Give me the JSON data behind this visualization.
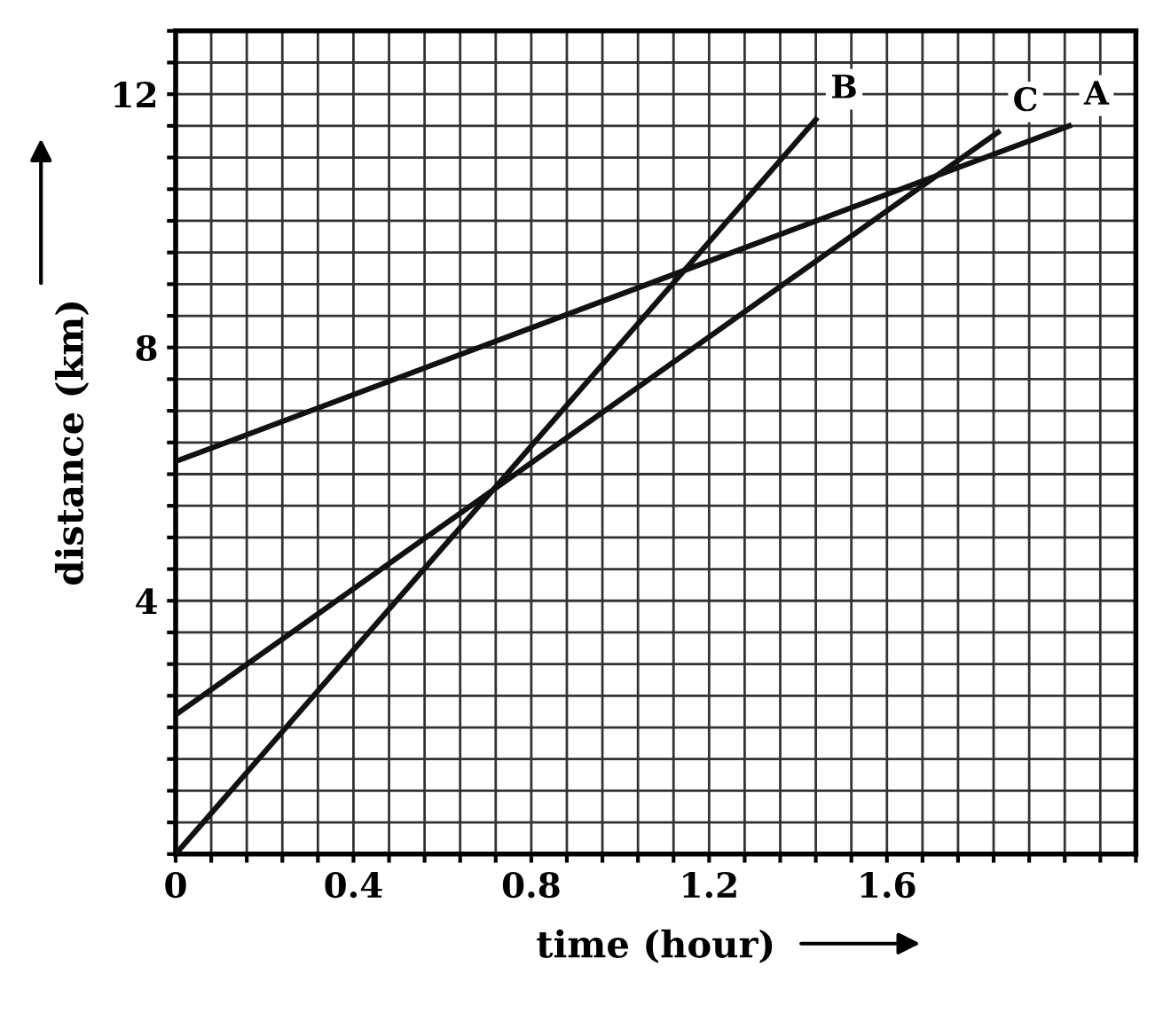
{
  "chart_data": {
    "type": "line",
    "xlabel": "time (hour)",
    "ylabel": "distance (km)",
    "xlim": [
      0,
      2.16
    ],
    "ylim": [
      0,
      13
    ],
    "xticks": [
      {
        "value": 0,
        "label": "0"
      },
      {
        "value": 0.08,
        "label": null
      },
      {
        "value": 0.16,
        "label": null
      },
      {
        "value": 0.24,
        "label": null
      },
      {
        "value": 0.32,
        "label": null
      },
      {
        "value": 0.4,
        "label": "0.4"
      },
      {
        "value": 0.48,
        "label": null
      },
      {
        "value": 0.56,
        "label": null
      },
      {
        "value": 0.64,
        "label": null
      },
      {
        "value": 0.72,
        "label": null
      },
      {
        "value": 0.8,
        "label": "0.8"
      },
      {
        "value": 0.88,
        "label": null
      },
      {
        "value": 0.96,
        "label": null
      },
      {
        "value": 1.04,
        "label": null
      },
      {
        "value": 1.12,
        "label": null
      },
      {
        "value": 1.2,
        "label": "1.2"
      },
      {
        "value": 1.28,
        "label": null
      },
      {
        "value": 1.36,
        "label": null
      },
      {
        "value": 1.44,
        "label": null
      },
      {
        "value": 1.52,
        "label": null
      },
      {
        "value": 1.6,
        "label": "1.6"
      },
      {
        "value": 1.68,
        "label": null
      },
      {
        "value": 1.76,
        "label": null
      },
      {
        "value": 1.84,
        "label": null
      },
      {
        "value": 1.92,
        "label": null
      },
      {
        "value": 2.0,
        "label": null
      },
      {
        "value": 2.08,
        "label": null
      },
      {
        "value": 2.16,
        "label": null
      }
    ],
    "yticks": [
      {
        "value": 0,
        "label": null
      },
      {
        "value": 0.5,
        "label": null
      },
      {
        "value": 1,
        "label": null
      },
      {
        "value": 1.5,
        "label": null
      },
      {
        "value": 2,
        "label": null
      },
      {
        "value": 2.5,
        "label": null
      },
      {
        "value": 3,
        "label": null
      },
      {
        "value": 3.5,
        "label": null
      },
      {
        "value": 4,
        "label": "4"
      },
      {
        "value": 4.5,
        "label": null
      },
      {
        "value": 5,
        "label": null
      },
      {
        "value": 5.5,
        "label": null
      },
      {
        "value": 6,
        "label": null
      },
      {
        "value": 6.5,
        "label": null
      },
      {
        "value": 7,
        "label": null
      },
      {
        "value": 7.5,
        "label": null
      },
      {
        "value": 8,
        "label": "8"
      },
      {
        "value": 8.5,
        "label": null
      },
      {
        "value": 9,
        "label": null
      },
      {
        "value": 9.5,
        "label": null
      },
      {
        "value": 10,
        "label": null
      },
      {
        "value": 10.5,
        "label": null
      },
      {
        "value": 11,
        "label": null
      },
      {
        "value": 11.5,
        "label": null
      },
      {
        "value": 12,
        "label": "12"
      },
      {
        "value": 12.5,
        "label": null
      },
      {
        "value": 13,
        "label": null
      }
    ],
    "grid": true,
    "marker": "none",
    "line_style": "solid",
    "series": [
      {
        "name": "A",
        "color": "#111111",
        "x": [
          0,
          2.01
        ],
        "values": [
          6.2,
          11.5
        ]
      },
      {
        "name": "B",
        "color": "#111111",
        "x": [
          0,
          1.44
        ],
        "values": [
          0,
          11.6
        ]
      },
      {
        "name": "C",
        "color": "#111111",
        "x": [
          0,
          1.85
        ],
        "values": [
          2.2,
          11.4
        ]
      }
    ]
  }
}
